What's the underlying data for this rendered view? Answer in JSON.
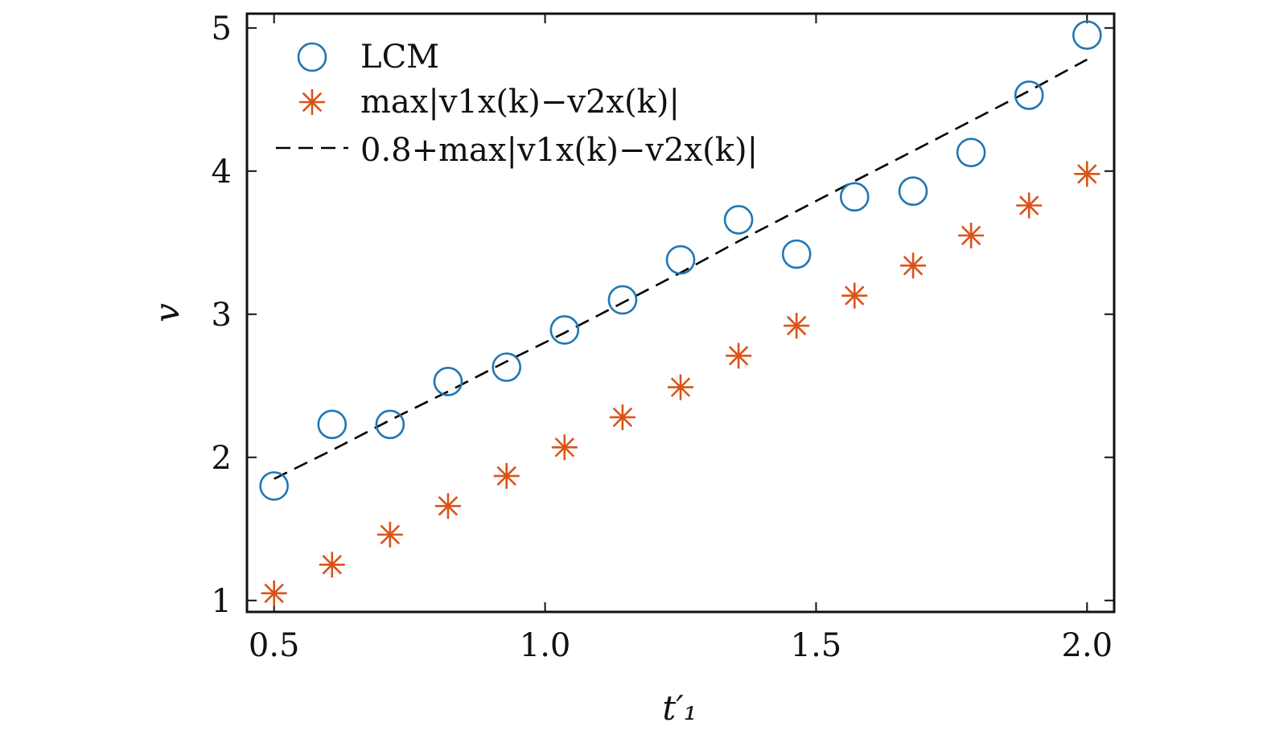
{
  "chart_data": {
    "type": "scatter",
    "xlabel": "t′₁",
    "ylabel": "v",
    "xlim": [
      0.45,
      2.05
    ],
    "ylim": [
      0.92,
      5.1
    ],
    "xticks": [
      "0.5",
      "1.0",
      "1.5",
      "2.0"
    ],
    "yticks": [
      "1",
      "2",
      "3",
      "4",
      "5"
    ],
    "legend_position": "top-left",
    "x": [
      0.5,
      0.607,
      0.714,
      0.821,
      0.929,
      1.036,
      1.143,
      1.25,
      1.357,
      1.464,
      1.571,
      1.679,
      1.786,
      1.893,
      2.0
    ],
    "series": [
      {
        "name": "LCM",
        "marker": "circle",
        "color": "#1f77b4",
        "values": [
          1.8,
          2.23,
          2.23,
          2.53,
          2.63,
          2.89,
          3.1,
          3.38,
          3.66,
          3.42,
          3.82,
          3.86,
          4.13,
          4.53,
          4.95
        ]
      },
      {
        "name": "max|v1x(k)−v2x(k)|",
        "marker": "asterisk",
        "color": "#d95319",
        "values": [
          1.05,
          1.25,
          1.46,
          1.66,
          1.87,
          2.07,
          2.28,
          2.49,
          2.71,
          2.92,
          3.13,
          3.34,
          3.55,
          3.76,
          3.98
        ]
      },
      {
        "name": "0.8+max|v1x(k)−v2x(k)|",
        "style": "dashed-line",
        "color": "#000000",
        "values": [
          1.85,
          2.05,
          2.26,
          2.46,
          2.67,
          2.87,
          3.08,
          3.29,
          3.51,
          3.72,
          3.93,
          4.14,
          4.35,
          4.56,
          4.78
        ]
      }
    ]
  }
}
